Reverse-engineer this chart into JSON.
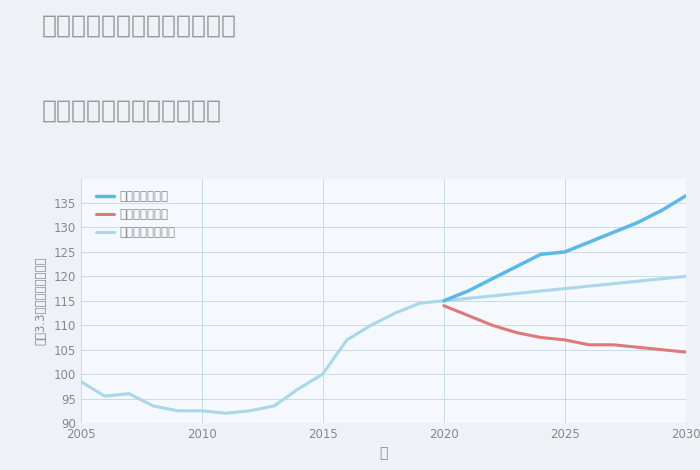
{
  "title_line1": "埼玉県児玉郡神川町熊野堂の",
  "title_line2": "中古マンションの価格推移",
  "xlabel": "年",
  "ylabel": "坪（3.3㎡）単価（万円）",
  "background_color": "#eef2f7",
  "plot_bg_color": "#f5f8fc",
  "ylim": [
    90,
    140
  ],
  "xlim": [
    2005,
    2030
  ],
  "yticks": [
    90,
    95,
    100,
    105,
    110,
    115,
    120,
    125,
    130,
    135
  ],
  "xticks": [
    2005,
    2010,
    2015,
    2020,
    2025,
    2030
  ],
  "normal_x": [
    2005,
    2006,
    2007,
    2008,
    2009,
    2010,
    2011,
    2012,
    2013,
    2014,
    2015,
    2016,
    2017,
    2018,
    2019,
    2020,
    2021,
    2022,
    2023,
    2024,
    2025,
    2026,
    2027,
    2028,
    2029,
    2030
  ],
  "normal_y": [
    98.5,
    95.5,
    96.0,
    93.5,
    92.5,
    92.5,
    92.0,
    92.5,
    93.5,
    97.0,
    100.0,
    107.0,
    110.0,
    112.5,
    114.5,
    115.0,
    115.5,
    116.0,
    116.5,
    117.0,
    117.5,
    118.0,
    118.5,
    119.0,
    119.5,
    120.0
  ],
  "good_x": [
    2020,
    2021,
    2022,
    2023,
    2024,
    2025,
    2026,
    2027,
    2028,
    2029,
    2030
  ],
  "good_y": [
    115.0,
    117.0,
    119.5,
    122.0,
    124.5,
    125.0,
    127.0,
    129.0,
    131.0,
    133.5,
    136.5
  ],
  "bad_x": [
    2020,
    2021,
    2022,
    2023,
    2024,
    2025,
    2026,
    2027,
    2028,
    2029,
    2030
  ],
  "bad_y": [
    114.0,
    112.0,
    110.0,
    108.5,
    107.5,
    107.0,
    106.0,
    106.0,
    105.5,
    105.0,
    104.5
  ],
  "good_color": "#5bb8e8",
  "bad_color": "#e07878",
  "normal_color": "#a8d8ea",
  "legend_labels": [
    "グッドシナリオ",
    "バッドシナリオ",
    "ノーマルシナリオ"
  ],
  "title_color": "#999999",
  "grid_color": "#c8dcea",
  "line_width": 2.2,
  "title_fontsize": 18,
  "axis_label_color": "#888888",
  "tick_color": "#888888"
}
